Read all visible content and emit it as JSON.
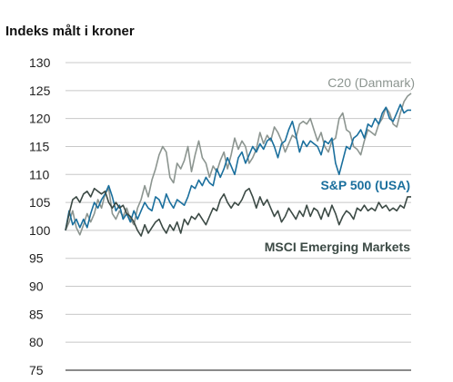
{
  "chart_data": {
    "type": "line",
    "title": "Indeks målt i kroner",
    "xlabel": "",
    "ylabel": "",
    "ylim": [
      75,
      130
    ],
    "yticks": [
      130,
      125,
      120,
      115,
      110,
      105,
      100,
      95,
      90,
      85,
      80,
      75
    ],
    "grid": true,
    "x": [
      0,
      1,
      2,
      3,
      4,
      5,
      6,
      7,
      8,
      9,
      10,
      11,
      12,
      13,
      14,
      15,
      16,
      17,
      18,
      19,
      20,
      21,
      22,
      23,
      24,
      25,
      26,
      27,
      28,
      29,
      30,
      31,
      32,
      33,
      34,
      35,
      36,
      37,
      38,
      39,
      40,
      41,
      42,
      43,
      44,
      45,
      46,
      47,
      48,
      49,
      50,
      51,
      52,
      53,
      54,
      55,
      56,
      57,
      58,
      59,
      60,
      61,
      62,
      63,
      64,
      65,
      66,
      67,
      68,
      69,
      70,
      71,
      72,
      73,
      74,
      75,
      76,
      77,
      78,
      79,
      80,
      81,
      82,
      83,
      84,
      85,
      86,
      87,
      88,
      89,
      90,
      91,
      92,
      93,
      94,
      95,
      96
    ],
    "series": [
      {
        "name": "C20 (Danmark)",
        "color": "#8c9590",
        "values": [
          100,
          101.5,
          103.5,
          100.5,
          99.2,
          101,
          103,
          101.5,
          103,
          105.5,
          104,
          106.5,
          107.5,
          103,
          102,
          103.5,
          102.5,
          104,
          102,
          101,
          104,
          105.5,
          108,
          106,
          109,
          111,
          113.5,
          115,
          114,
          109.5,
          108.5,
          112,
          111,
          112.5,
          115,
          110.5,
          113.5,
          116,
          113,
          112,
          109.5,
          111.5,
          110.5,
          112.5,
          114,
          111,
          113.5,
          116.5,
          114.5,
          116,
          115,
          112,
          113,
          114.5,
          117.5,
          115.5,
          117,
          116,
          118.5,
          117.5,
          116,
          114,
          115.5,
          117,
          116.5,
          119,
          119.5,
          119,
          120,
          118,
          116,
          117.5,
          115,
          114,
          116,
          116.5,
          120,
          121,
          118,
          117.5,
          115,
          114.5,
          113.5,
          116,
          118,
          117.5,
          117,
          119,
          120,
          122,
          121,
          119,
          118.5,
          121,
          123,
          124,
          124.5
        ]
      },
      {
        "name": "S&P 500 (USA)",
        "color": "#1a6f9d",
        "values": [
          100,
          103.5,
          101,
          102,
          100.5,
          102,
          100.5,
          103,
          105,
          104,
          105.5,
          106.5,
          108,
          106,
          103.5,
          104.5,
          102,
          103,
          101.5,
          103.5,
          102,
          103.5,
          105,
          104,
          103.5,
          106,
          105.5,
          104,
          106.5,
          105,
          104,
          105.5,
          105,
          104.5,
          106,
          108,
          107.5,
          109,
          108,
          109.5,
          108.5,
          108,
          111,
          109.5,
          111,
          113,
          111.5,
          110,
          113,
          114,
          112,
          113.5,
          115,
          114,
          115.5,
          114.5,
          116,
          116.5,
          115,
          113,
          115.5,
          116,
          118,
          119.5,
          117,
          114,
          116,
          115,
          116,
          115.5,
          115,
          113.5,
          116,
          115.5,
          116.5,
          112,
          110,
          112.5,
          115,
          114.5,
          116.5,
          117,
          118,
          116.5,
          119,
          118.5,
          120,
          119,
          121,
          122,
          120,
          119.5,
          121,
          122.5,
          121,
          121.5,
          121.5
        ]
      },
      {
        "name": "MSCI Emerging Markets",
        "color": "#3c4a45",
        "values": [
          100,
          103,
          105.5,
          106,
          105,
          106.5,
          107,
          106,
          107.5,
          107,
          106.5,
          107,
          105,
          104,
          105,
          104,
          104.5,
          103,
          102.5,
          101.5,
          100,
          99,
          101,
          99.5,
          100.5,
          101.5,
          102,
          100.5,
          99.5,
          101,
          100,
          101.5,
          99.5,
          102,
          101,
          102.5,
          102,
          103,
          102,
          101,
          102.5,
          104,
          103.5,
          105.5,
          106.5,
          105,
          104,
          105,
          104.5,
          105.5,
          107,
          107.5,
          106,
          104,
          106,
          104.5,
          105.5,
          104,
          102.5,
          103.5,
          101.5,
          102.5,
          104,
          103,
          102,
          103.5,
          102.5,
          104.5,
          102.5,
          104,
          103.5,
          102,
          104,
          102.5,
          104.5,
          103,
          101,
          102.5,
          103.5,
          103,
          102,
          104,
          103.5,
          104.5,
          103.5,
          104,
          103.5,
          105,
          104,
          104.5,
          103.5,
          104,
          103.5,
          104.5,
          104,
          106,
          106
        ]
      }
    ]
  }
}
